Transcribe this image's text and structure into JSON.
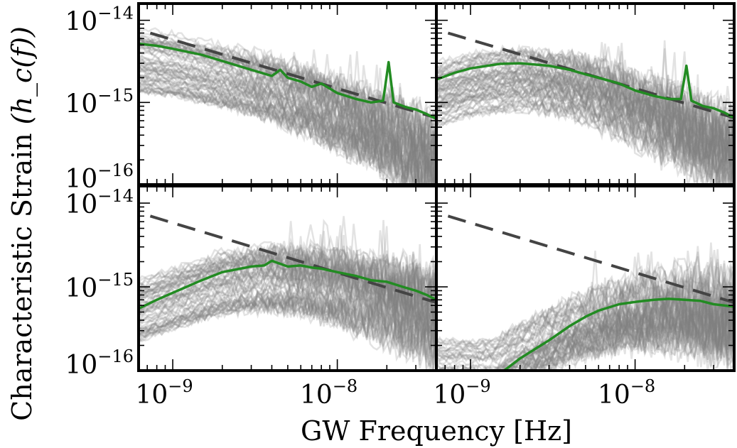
{
  "chart_data": {
    "type": "line",
    "layout": "2x2 grid, shared x and y axes",
    "xlabel": "GW Frequency [Hz]",
    "ylabel_main": "Characteristic Strain ",
    "ylabel_math": "(h_c(f))",
    "xscale": "log",
    "yscale": "log",
    "xlim": [
      6.2e-10,
      4e-08
    ],
    "ylim": [
      1e-16,
      1.6e-14
    ],
    "x_tick_labels": [
      {
        "value": 1e-09,
        "base": "10",
        "exp": "−9"
      },
      {
        "value": 1e-08,
        "base": "10",
        "exp": "−8"
      }
    ],
    "y_tick_labels": [
      {
        "value": 1e-14,
        "base": "10",
        "exp": "−14"
      },
      {
        "value": 1e-15,
        "base": "10",
        "exp": "−15"
      },
      {
        "value": 1e-16,
        "base": "10",
        "exp": "−16"
      }
    ],
    "colors": {
      "realizations": "#808080",
      "highlight": "#228B22",
      "reference": "#444444"
    },
    "grid": false,
    "legend": "none",
    "panels": [
      {
        "position": "top-left",
        "reference_line": {
          "x": [
            7.3e-10,
            4e-08
          ],
          "y": [
            7e-15,
            6.5e-16
          ]
        },
        "highlight_curve": {
          "x": [
            6.2e-10,
            8e-10,
            1e-09,
            1.5e-09,
            2e-09,
            3e-09,
            4e-09,
            4.5e-09,
            5e-09,
            6e-09,
            7e-09,
            8e-09,
            1e-08,
            1.3e-08,
            1.6e-08,
            1.9e-08,
            2.05e-08,
            2.2e-08,
            2.6e-08,
            3e-08,
            3.5e-08,
            4e-08
          ],
          "y": [
            5.2e-15,
            4.9e-15,
            4.5e-15,
            3.8e-15,
            3.2e-15,
            2.5e-15,
            2.1e-15,
            2.5e-15,
            2e-15,
            1.8e-15,
            1.55e-15,
            1.7e-15,
            1.3e-15,
            1.1e-15,
            1e-15,
            1.05e-15,
            3.1e-15,
            1e-15,
            8.8e-16,
            8.2e-16,
            7.2e-16,
            6.3e-16
          ]
        },
        "band_median": {
          "x": [
            6.2e-10,
            1e-09,
            2e-09,
            4e-09,
            8e-09,
            1.6e-08,
            2.5e-08,
            4e-08
          ],
          "y": [
            3.2e-15,
            2.8e-15,
            2.1e-15,
            1.5e-15,
            9e-16,
            5e-16,
            3.3e-16,
            2e-16
          ]
        }
      },
      {
        "position": "top-right",
        "reference_line": {
          "x": [
            7.3e-10,
            4e-08
          ],
          "y": [
            7e-15,
            6.5e-16
          ]
        },
        "highlight_curve": {
          "x": [
            6.2e-10,
            8e-10,
            1e-09,
            1.5e-09,
            2e-09,
            3e-09,
            4e-09,
            5e-09,
            6e-09,
            8e-09,
            1e-08,
            1.3e-08,
            1.6e-08,
            1.9e-08,
            2.05e-08,
            2.2e-08,
            2.6e-08,
            3e-08,
            3.5e-08,
            4e-08
          ],
          "y": [
            1.9e-15,
            2.3e-15,
            2.6e-15,
            2.95e-15,
            3e-15,
            2.8e-15,
            2.5e-15,
            2.2e-15,
            2e-15,
            1.7e-15,
            1.4e-15,
            1.2e-15,
            1.1e-15,
            1.1e-15,
            2.8e-15,
            1.05e-15,
            9e-16,
            8.5e-16,
            7.5e-16,
            6.5e-16
          ]
        },
        "band_median": {
          "x": [
            6.2e-10,
            1e-09,
            2e-09,
            4e-09,
            8e-09,
            1.6e-08,
            2.5e-08,
            4e-08
          ],
          "y": [
            1.2e-15,
            1.6e-15,
            1.9e-15,
            1.6e-15,
            1e-15,
            5.5e-16,
            3.5e-16,
            2.2e-16
          ]
        }
      },
      {
        "position": "bottom-left",
        "reference_line": {
          "x": [
            7.3e-10,
            4e-08
          ],
          "y": [
            7e-15,
            6.5e-16
          ]
        },
        "highlight_curve": {
          "x": [
            6.2e-10,
            8e-10,
            1e-09,
            1.5e-09,
            2e-09,
            3e-09,
            3.6e-09,
            4e-09,
            5e-09,
            6e-09,
            7e-09,
            8e-09,
            1e-08,
            1.3e-08,
            1.6e-08,
            2e-08,
            2.5e-08,
            3e-08,
            3.5e-08,
            4e-08
          ],
          "y": [
            5.5e-16,
            7e-16,
            8.5e-16,
            1.2e-15,
            1.5e-15,
            1.75e-15,
            1.8e-15,
            2.05e-15,
            1.75e-15,
            1.8e-15,
            1.7e-15,
            1.65e-15,
            1.5e-15,
            1.35e-15,
            1.2e-15,
            1.15e-15,
            1e-15,
            9e-16,
            8e-16,
            7e-16
          ]
        },
        "band_median": {
          "x": [
            6.2e-10,
            1e-09,
            2e-09,
            4e-09,
            8e-09,
            1.6e-08,
            2.5e-08,
            4e-08
          ],
          "y": [
            5e-16,
            7e-16,
            1.1e-15,
            1.3e-15,
            1.1e-15,
            8e-16,
            6e-16,
            4.5e-16
          ]
        }
      },
      {
        "position": "bottom-right",
        "reference_line": {
          "x": [
            7.3e-10,
            4e-08
          ],
          "y": [
            7e-15,
            6.5e-16
          ]
        },
        "highlight_curve": {
          "x": [
            1.6e-09,
            2e-09,
            3e-09,
            4e-09,
            5e-09,
            6e-09,
            8e-09,
            1e-08,
            1.3e-08,
            1.6e-08,
            2e-08,
            2.5e-08,
            3e-08,
            4e-08
          ],
          "y": [
            1e-16,
            1.4e-16,
            2.3e-16,
            3.4e-16,
            4.4e-16,
            5.2e-16,
            6.2e-16,
            6.6e-16,
            7e-16,
            7.2e-16,
            7e-16,
            6.8e-16,
            6.2e-16,
            5.8e-16
          ]
        },
        "band_median": {
          "x": [
            1.4e-09,
            2e-09,
            4e-09,
            8e-09,
            1.6e-08,
            2.5e-08,
            4e-08
          ],
          "y": [
            1e-16,
            1.6e-16,
            3e-16,
            4.5e-16,
            5.5e-16,
            5e-16,
            4.5e-16
          ]
        }
      }
    ]
  }
}
